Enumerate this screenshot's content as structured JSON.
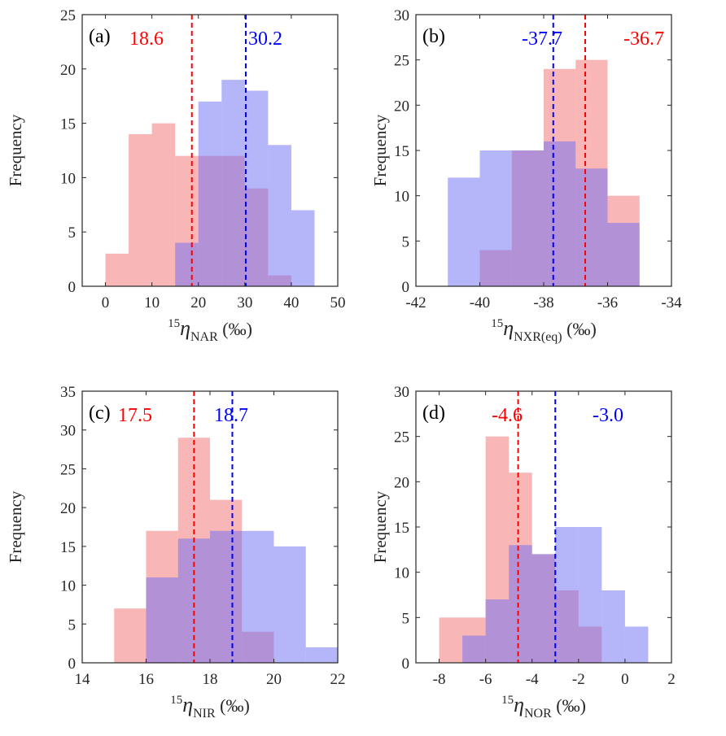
{
  "figure": {
    "colors": {
      "red_fill": "#f26d6d",
      "blue_fill": "#6c6cf5",
      "red_line": "#ff0000",
      "blue_line": "#0000ff",
      "axis": "#262626"
    }
  },
  "chart_data": [
    {
      "type": "histogram",
      "panel": "(a)",
      "xlabel": {
        "sup": "15",
        "sym": "η",
        "sub": "NAR",
        "unit": " (‰)"
      },
      "ylabel": "Frequency",
      "xlim": [
        -5,
        50
      ],
      "ylim": [
        0,
        25
      ],
      "xticks": [
        0,
        10,
        20,
        30,
        40,
        50
      ],
      "yticks": [
        0,
        5,
        10,
        15,
        20,
        25
      ],
      "series": [
        {
          "name": "red",
          "bins": [
            [
              0,
              5,
              3
            ],
            [
              5,
              10,
              14
            ],
            [
              10,
              15,
              15
            ],
            [
              15,
              20,
              12
            ],
            [
              20,
              25,
              12
            ],
            [
              25,
              30,
              12
            ],
            [
              30,
              35,
              9
            ],
            [
              35,
              40,
              1
            ]
          ]
        },
        {
          "name": "blue",
          "bins": [
            [
              15,
              20,
              4
            ],
            [
              20,
              25,
              17
            ],
            [
              25,
              30,
              19
            ],
            [
              30,
              35,
              18
            ],
            [
              35,
              40,
              13
            ],
            [
              40,
              45,
              7
            ]
          ]
        }
      ],
      "means": [
        {
          "series": "red",
          "value": 18.6,
          "label": "18.6"
        },
        {
          "series": "blue",
          "value": 30.2,
          "label": "30.2"
        }
      ]
    },
    {
      "type": "histogram",
      "panel": "(b)",
      "xlabel": {
        "sup": "15",
        "sym": "η",
        "sub": "NXR(eq)",
        "unit": " (‰)"
      },
      "ylabel": "Frequency",
      "xlim": [
        -42,
        -34
      ],
      "ylim": [
        0,
        30
      ],
      "xticks": [
        -42,
        -40,
        -38,
        -36,
        -34
      ],
      "yticks": [
        0,
        5,
        10,
        15,
        20,
        25,
        30
      ],
      "series": [
        {
          "name": "red",
          "bins": [
            [
              -40,
              -39,
              4
            ],
            [
              -39,
              -38,
              15
            ],
            [
              -38,
              -37,
              24
            ],
            [
              -37,
              -36,
              25
            ],
            [
              -36,
              -35,
              10
            ]
          ]
        },
        {
          "name": "blue",
          "bins": [
            [
              -41,
              -40,
              12
            ],
            [
              -40,
              -39,
              15
            ],
            [
              -39,
              -38,
              15
            ],
            [
              -38,
              -37,
              16
            ],
            [
              -37,
              -36,
              13
            ],
            [
              -36,
              -35,
              7
            ]
          ]
        }
      ],
      "means": [
        {
          "series": "blue",
          "value": -37.7,
          "label": "-37.7"
        },
        {
          "series": "red",
          "value": -36.7,
          "label": "-36.7"
        }
      ]
    },
    {
      "type": "histogram",
      "panel": "(c)",
      "xlabel": {
        "sup": "15",
        "sym": "η",
        "sub": "NIR",
        "unit": " (‰)"
      },
      "ylabel": "Frequency",
      "xlim": [
        14,
        22
      ],
      "ylim": [
        0,
        35
      ],
      "xticks": [
        14,
        16,
        18,
        20,
        22
      ],
      "yticks": [
        0,
        5,
        10,
        15,
        20,
        25,
        30,
        35
      ],
      "series": [
        {
          "name": "red",
          "bins": [
            [
              15,
              16,
              7
            ],
            [
              16,
              17,
              17
            ],
            [
              17,
              18,
              29
            ],
            [
              18,
              19,
              21
            ],
            [
              19,
              20,
              4
            ]
          ]
        },
        {
          "name": "blue",
          "bins": [
            [
              16,
              17,
              11
            ],
            [
              17,
              18,
              16
            ],
            [
              18,
              19,
              17
            ],
            [
              19,
              20,
              17
            ],
            [
              20,
              21,
              15
            ],
            [
              21,
              22,
              2
            ]
          ]
        }
      ],
      "means": [
        {
          "series": "red",
          "value": 17.5,
          "label": "17.5"
        },
        {
          "series": "blue",
          "value": 18.7,
          "label": "18.7"
        }
      ]
    },
    {
      "type": "histogram",
      "panel": "(d)",
      "xlabel": {
        "sup": "15",
        "sym": "η",
        "sub": "NOR",
        "unit": " (‰)"
      },
      "ylabel": "Frequency",
      "xlim": [
        -9,
        2
      ],
      "ylim": [
        0,
        30
      ],
      "xticks": [
        -8,
        -6,
        -4,
        -2,
        0,
        2
      ],
      "yticks": [
        0,
        5,
        10,
        15,
        20,
        25,
        30
      ],
      "series": [
        {
          "name": "red",
          "bins": [
            [
              -8,
              -7,
              5
            ],
            [
              -7,
              -6,
              5
            ],
            [
              -6,
              -5,
              25
            ],
            [
              -5,
              -4,
              21
            ],
            [
              -4,
              -3,
              12
            ],
            [
              -3,
              -2,
              8
            ],
            [
              -2,
              -1,
              4
            ]
          ]
        },
        {
          "name": "blue",
          "bins": [
            [
              -7,
              -6,
              3
            ],
            [
              -6,
              -5,
              7
            ],
            [
              -5,
              -4,
              13
            ],
            [
              -4,
              -3,
              12
            ],
            [
              -3,
              -2,
              15
            ],
            [
              -2,
              -1,
              15
            ],
            [
              -1,
              0,
              8
            ],
            [
              0,
              1,
              4
            ]
          ]
        }
      ],
      "means": [
        {
          "series": "red",
          "value": -4.6,
          "label": "-4.6"
        },
        {
          "series": "blue",
          "value": -3.0,
          "label": "-3.0"
        }
      ]
    }
  ]
}
